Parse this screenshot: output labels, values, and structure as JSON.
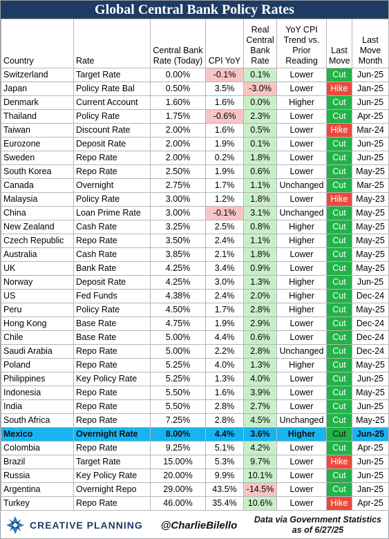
{
  "title": "Global Central Bank Policy Rates",
  "columns": [
    "Country",
    "Rate",
    "Central Bank Rate (Today)",
    "CPI YoY",
    "Real Central Bank Rate",
    "YoY CPI Trend vs. Prior Reading",
    "Last Move",
    "Last Move Month"
  ],
  "header_lines": {
    "country": [
      "Country"
    ],
    "rate": [
      "Rate"
    ],
    "cb_rate": [
      "Central Bank",
      "Rate (Today)"
    ],
    "cpi": [
      "CPI YoY"
    ],
    "real": [
      "Real",
      "Central",
      "Bank",
      "Rate"
    ],
    "trend": [
      "YoY CPI",
      "Trend vs.",
      "Prior",
      "Reading"
    ],
    "last_move": [
      "Last",
      "Move"
    ],
    "month": [
      "Last",
      "Move",
      "Month"
    ]
  },
  "rows": [
    {
      "country": "Switzerland",
      "rate": "Target Rate",
      "cb_rate": "0.00%",
      "cpi": "-0.1%",
      "real": "0.1%",
      "trend": "Lower",
      "move": "Cut",
      "month": "Jun-25"
    },
    {
      "country": "Japan",
      "rate": "Policy Rate Bal",
      "cb_rate": "0.50%",
      "cpi": "3.5%",
      "real": "-3.0%",
      "trend": "Lower",
      "move": "Hike",
      "month": "Jan-25"
    },
    {
      "country": "Denmark",
      "rate": "Current Account",
      "cb_rate": "1.60%",
      "cpi": "1.6%",
      "real": "0.0%",
      "trend": "Higher",
      "move": "Cut",
      "month": "Jun-25"
    },
    {
      "country": "Thailand",
      "rate": "Policy Rate",
      "cb_rate": "1.75%",
      "cpi": "-0.6%",
      "real": "2.3%",
      "trend": "Lower",
      "move": "Cut",
      "month": "Apr-25"
    },
    {
      "country": "Taiwan",
      "rate": "Discount Rate",
      "cb_rate": "2.00%",
      "cpi": "1.6%",
      "real": "0.5%",
      "trend": "Lower",
      "move": "Hike",
      "month": "Mar-24"
    },
    {
      "country": "Eurozone",
      "rate": "Deposit Rate",
      "cb_rate": "2.00%",
      "cpi": "1.9%",
      "real": "0.1%",
      "trend": "Lower",
      "move": "Cut",
      "month": "Jun-25"
    },
    {
      "country": "Sweden",
      "rate": "Repo Rate",
      "cb_rate": "2.00%",
      "cpi": "0.2%",
      "real": "1.8%",
      "trend": "Lower",
      "move": "Cut",
      "month": "Jun-25"
    },
    {
      "country": "South Korea",
      "rate": "Repo Rate",
      "cb_rate": "2.50%",
      "cpi": "1.9%",
      "real": "0.6%",
      "trend": "Lower",
      "move": "Cut",
      "month": "May-25"
    },
    {
      "country": "Canada",
      "rate": "Overnight",
      "cb_rate": "2.75%",
      "cpi": "1.7%",
      "real": "1.1%",
      "trend": "Unchanged",
      "move": "Cut",
      "month": "Mar-25"
    },
    {
      "country": "Malaysia",
      "rate": "Policy Rate",
      "cb_rate": "3.00%",
      "cpi": "1.2%",
      "real": "1.8%",
      "trend": "Lower",
      "move": "Hike",
      "month": "May-23"
    },
    {
      "country": "China",
      "rate": "Loan Prime Rate",
      "cb_rate": "3.00%",
      "cpi": "-0.1%",
      "real": "3.1%",
      "trend": "Unchanged",
      "move": "Cut",
      "month": "May-25"
    },
    {
      "country": "New Zealand",
      "rate": "Cash Rate",
      "cb_rate": "3.25%",
      "cpi": "2.5%",
      "real": "0.8%",
      "trend": "Higher",
      "move": "Cut",
      "month": "May-25"
    },
    {
      "country": "Czech Republic",
      "rate": "Repo Rate",
      "cb_rate": "3.50%",
      "cpi": "2.4%",
      "real": "1.1%",
      "trend": "Higher",
      "move": "Cut",
      "month": "May-25"
    },
    {
      "country": "Australia",
      "rate": "Cash Rate",
      "cb_rate": "3.85%",
      "cpi": "2.1%",
      "real": "1.8%",
      "trend": "Lower",
      "move": "Cut",
      "month": "May-25"
    },
    {
      "country": "UK",
      "rate": "Bank Rate",
      "cb_rate": "4.25%",
      "cpi": "3.4%",
      "real": "0.9%",
      "trend": "Lower",
      "move": "Cut",
      "month": "May-25"
    },
    {
      "country": "Norway",
      "rate": "Deposit Rate",
      "cb_rate": "4.25%",
      "cpi": "3.0%",
      "real": "1.3%",
      "trend": "Higher",
      "move": "Cut",
      "month": "Jun-25"
    },
    {
      "country": "US",
      "rate": "Fed Funds",
      "cb_rate": "4.38%",
      "cpi": "2.4%",
      "real": "2.0%",
      "trend": "Higher",
      "move": "Cut",
      "month": "Dec-24"
    },
    {
      "country": "Peru",
      "rate": "Policy Rate",
      "cb_rate": "4.50%",
      "cpi": "1.7%",
      "real": "2.8%",
      "trend": "Higher",
      "move": "Cut",
      "month": "May-25"
    },
    {
      "country": "Hong Kong",
      "rate": "Base Rate",
      "cb_rate": "4.75%",
      "cpi": "1.9%",
      "real": "2.9%",
      "trend": "Lower",
      "move": "Cut",
      "month": "Dec-24"
    },
    {
      "country": "Chile",
      "rate": "Base Rate",
      "cb_rate": "5.00%",
      "cpi": "4.4%",
      "real": "0.6%",
      "trend": "Lower",
      "move": "Cut",
      "month": "Dec-24"
    },
    {
      "country": "Saudi Arabia",
      "rate": "Repo Rate",
      "cb_rate": "5.00%",
      "cpi": "2.2%",
      "real": "2.8%",
      "trend": "Unchanged",
      "move": "Cut",
      "month": "Dec-24"
    },
    {
      "country": "Poland",
      "rate": "Repo Rate",
      "cb_rate": "5.25%",
      "cpi": "4.0%",
      "real": "1.3%",
      "trend": "Higher",
      "move": "Cut",
      "month": "May-25"
    },
    {
      "country": "Philippines",
      "rate": "Key Policy Rate",
      "cb_rate": "5.25%",
      "cpi": "1.3%",
      "real": "4.0%",
      "trend": "Lower",
      "move": "Cut",
      "month": "Jun-25"
    },
    {
      "country": "Indonesia",
      "rate": "Repo Rate",
      "cb_rate": "5.50%",
      "cpi": "1.6%",
      "real": "3.9%",
      "trend": "Lower",
      "move": "Cut",
      "month": "May-25"
    },
    {
      "country": "India",
      "rate": "Repo Rate",
      "cb_rate": "5.50%",
      "cpi": "2.8%",
      "real": "2.7%",
      "trend": "Lower",
      "move": "Cut",
      "month": "Jun-25"
    },
    {
      "country": "South Africa",
      "rate": "Repo Rate",
      "cb_rate": "7.25%",
      "cpi": "2.8%",
      "real": "4.5%",
      "trend": "Unchanged",
      "move": "Cut",
      "month": "May-25"
    },
    {
      "country": "Mexico",
      "rate": "Overnight Rate",
      "cb_rate": "8.00%",
      "cpi": "4.4%",
      "real": "3.6%",
      "trend": "Higher",
      "move": "Cut",
      "month": "Jun-25",
      "highlight": true
    },
    {
      "country": "Colombia",
      "rate": "Repo Rate",
      "cb_rate": "9.25%",
      "cpi": "5.1%",
      "real": "4.2%",
      "trend": "Lower",
      "move": "Cut",
      "month": "Apr-25"
    },
    {
      "country": "Brazil",
      "rate": "Target Rate",
      "cb_rate": "15.00%",
      "cpi": "5.3%",
      "real": "9.7%",
      "trend": "Lower",
      "move": "Hike",
      "month": "Jun-25"
    },
    {
      "country": "Russia",
      "rate": "Key Policy Rate",
      "cb_rate": "20.00%",
      "cpi": "9.9%",
      "real": "10.1%",
      "trend": "Lower",
      "move": "Cut",
      "month": "Jun-25"
    },
    {
      "country": "Argentina",
      "rate": "Overnight Repo",
      "cb_rate": "29.00%",
      "cpi": "43.5%",
      "real": "-14.5%",
      "trend": "Lower",
      "move": "Cut",
      "month": "Jan-25"
    },
    {
      "country": "Turkey",
      "rate": "Repo Rate",
      "cb_rate": "46.00%",
      "cpi": "35.4%",
      "real": "10.6%",
      "trend": "Lower",
      "move": "Hike",
      "month": "Apr-25"
    }
  ],
  "chart_data": {
    "type": "table",
    "title": "Global Central Bank Policy Rates",
    "columns": [
      "Country",
      "Rate",
      "Central Bank Rate (Today)",
      "CPI YoY",
      "Real Central Bank Rate",
      "YoY CPI Trend vs. Prior Reading",
      "Last Move",
      "Last Move Month"
    ],
    "colors": {
      "negative_fill": "#f8c4c4",
      "positive_fill": "#c9efc9",
      "cut": "#22b34a",
      "hike": "#ea4a3e",
      "highlight_row": "#18b4f0",
      "title_bg": "#1f3b63"
    }
  },
  "footer": {
    "brand": "CREATIVE PLANNING",
    "handle": "@CharlieBilello",
    "source_line1": "Data via Government Statistics",
    "source_line2": "as of 6/27/25"
  }
}
